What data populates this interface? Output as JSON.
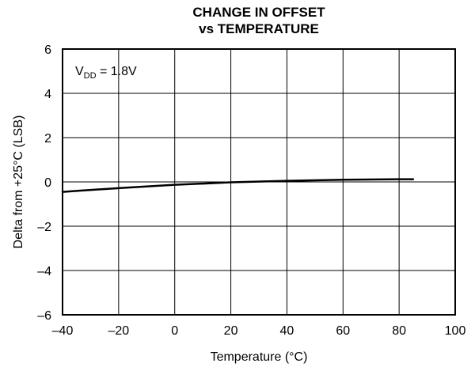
{
  "chart_data": {
    "type": "line",
    "title": "CHANGE IN OFFSET",
    "subtitle": "vs TEMPERATURE",
    "xlabel": "Temperature (°C)",
    "ylabel": "Delta from +25°C (LSB)",
    "xlim": [
      -40,
      100
    ],
    "ylim": [
      -6,
      6
    ],
    "x_ticks": [
      -40,
      -20,
      0,
      20,
      40,
      60,
      80,
      100
    ],
    "y_ticks": [
      -6,
      -4,
      -2,
      0,
      2,
      4,
      6
    ],
    "x_tick_labels": [
      "–40",
      "–20",
      "0",
      "20",
      "40",
      "60",
      "80",
      "100"
    ],
    "y_tick_labels": [
      "–6",
      "–4",
      "–2",
      "0",
      "2",
      "4",
      "6"
    ],
    "grid": true,
    "annotation": {
      "prefix": "V",
      "subscript": "DD",
      "suffix": " = 1.8V"
    },
    "series": [
      {
        "x": [
          -40,
          -20,
          0,
          20,
          40,
          60,
          80,
          85
        ],
        "y": [
          -0.45,
          -0.28,
          -0.13,
          -0.02,
          0.05,
          0.1,
          0.12,
          0.12
        ]
      }
    ]
  }
}
